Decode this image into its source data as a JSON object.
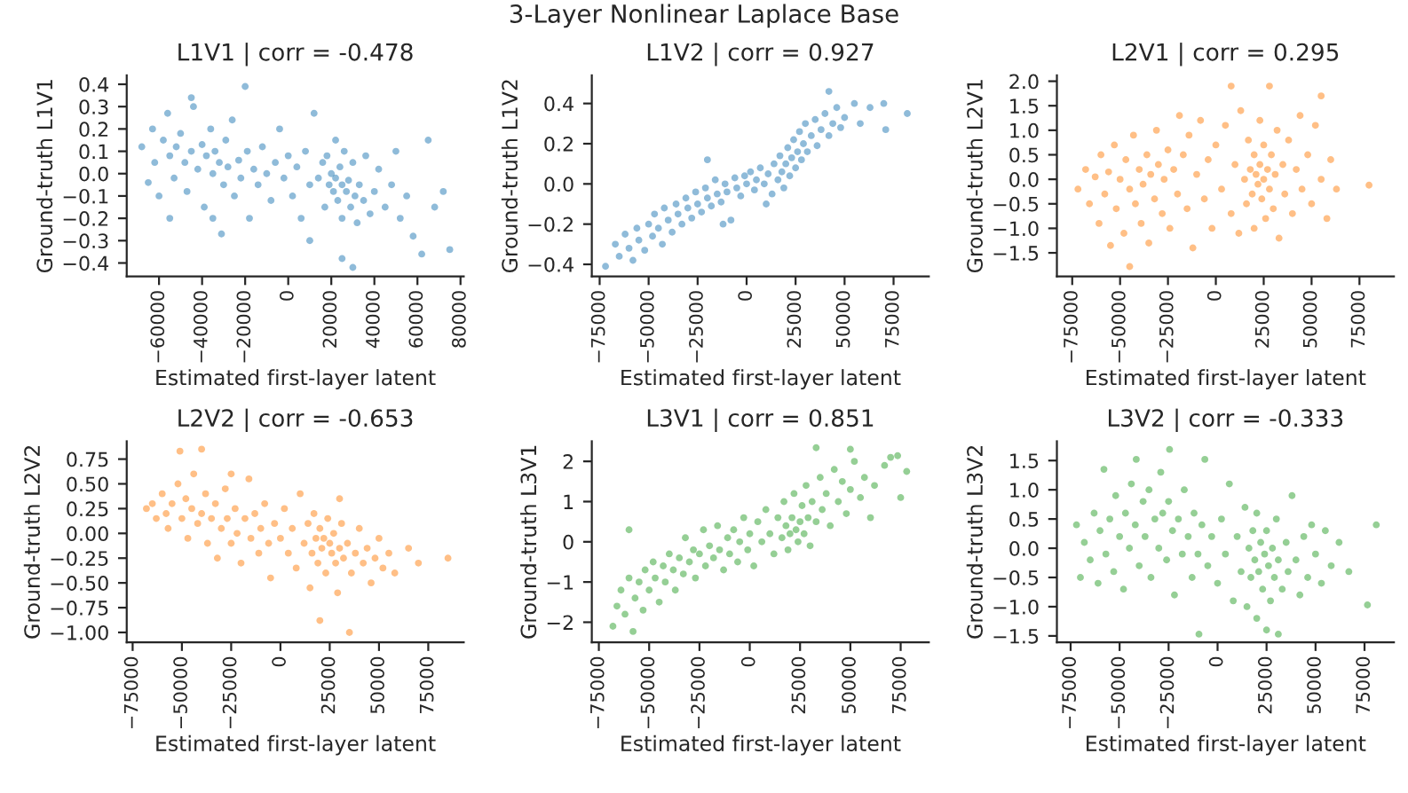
{
  "chart_data": [
    {
      "type": "other",
      "title": "3-Layer Nonlinear Laplace Base"
    },
    {
      "type": "scatter",
      "title": "L1V1 | corr = -0.478",
      "xlabel": "Estimated first-layer latent",
      "ylabel": "Ground-truth L1V1",
      "marker": "circle",
      "xlim": [
        -75000,
        81500
      ],
      "ylim": [
        -0.46,
        0.44
      ],
      "xticks": [
        {
          "value": -60000,
          "label": "−60000"
        },
        {
          "value": -40000,
          "label": "−40000"
        },
        {
          "value": -20000,
          "label": "−20000"
        },
        0,
        20000,
        40000,
        60000,
        80000
      ],
      "yticks": [
        {
          "value": -0.4,
          "label": "−0.4"
        },
        {
          "value": -0.3,
          "label": "−0.3"
        },
        {
          "value": -0.2,
          "label": "−0.2"
        },
        {
          "value": -0.1,
          "label": "−0.1"
        },
        {
          "value": 0,
          "label": "0.0"
        },
        {
          "value": 0.1,
          "label": "0.1"
        },
        {
          "value": 0.2,
          "label": "0.2"
        },
        {
          "value": 0.3,
          "label": "0.3"
        },
        {
          "value": 0.4,
          "label": "0.4"
        }
      ],
      "series": [
        {
          "color": "#1f77b4",
          "x": [
            -68000,
            -65000,
            -63000,
            -62000,
            -60000,
            -58000,
            -56000,
            -55000,
            -53000,
            -52000,
            -50000,
            -48000,
            -47000,
            -45000,
            -44000,
            -42000,
            -40000,
            -39000,
            -38000,
            -36000,
            -35000,
            -34000,
            -32000,
            -31000,
            -30000,
            -29000,
            -28000,
            -26000,
            -25000,
            -23000,
            -22000,
            -20000,
            -19000,
            -18000,
            -16000,
            -14000,
            -12000,
            -10000,
            -8000,
            -6000,
            -4000,
            -2000,
            0,
            2000,
            4000,
            6000,
            8000,
            10000,
            12000,
            14000,
            16000,
            17000,
            18000,
            19000,
            20000,
            21000,
            22000,
            22000,
            23000,
            24000,
            25000,
            25000,
            26000,
            27000,
            28000,
            29000,
            30000,
            31000,
            32000,
            33000,
            35000,
            36000,
            38000,
            40000,
            42000,
            45000,
            48000,
            50000,
            52000,
            55000,
            58000,
            62000,
            65000,
            68000,
            72000,
            75000,
            25000,
            10000,
            -35000,
            -55000,
            -45000,
            30000
          ],
          "values": [
            0.12,
            -0.04,
            0.2,
            0.05,
            -0.1,
            0.15,
            0.27,
            0.08,
            -0.02,
            0.12,
            0.18,
            0.05,
            -0.08,
            0.1,
            0.3,
            0.02,
            0.13,
            -0.15,
            0.08,
            0.2,
            0.0,
            0.1,
            0.05,
            -0.27,
            -0.05,
            0.15,
            0.03,
            0.24,
            -0.1,
            0.06,
            -0.02,
            0.39,
            0.1,
            -0.2,
            0.02,
            -0.05,
            0.12,
            0.0,
            -0.12,
            0.05,
            0.2,
            -0.02,
            0.08,
            -0.1,
            0.03,
            -0.2,
            0.1,
            -0.05,
            0.27,
            -0.02,
            0.05,
            -0.15,
            0.08,
            -0.05,
            0.0,
            -0.08,
            -0.02,
            0.15,
            -0.12,
            0.03,
            -0.05,
            -0.2,
            0.1,
            -0.08,
            -0.03,
            -0.15,
            0.05,
            -0.1,
            -0.22,
            -0.05,
            -0.12,
            0.08,
            -0.18,
            -0.08,
            0.02,
            -0.15,
            -0.05,
            0.1,
            -0.2,
            -0.1,
            -0.28,
            -0.36,
            0.15,
            -0.15,
            -0.08,
            -0.34,
            -0.38,
            -0.3,
            -0.2,
            -0.2,
            0.34,
            -0.42
          ]
        }
      ]
    },
    {
      "type": "scatter",
      "title": "L1V2 | corr = 0.927",
      "xlabel": "Estimated first-layer latent",
      "ylabel": "Ground-truth L1V2",
      "marker": "circle",
      "xlim": [
        -79000,
        93000
      ],
      "ylim": [
        -0.46,
        0.54
      ],
      "xticks": [
        {
          "value": -75000,
          "label": "−75000"
        },
        {
          "value": -50000,
          "label": "−50000"
        },
        {
          "value": -25000,
          "label": "−25000"
        },
        0,
        25000,
        50000,
        75000
      ],
      "yticks": [
        {
          "value": -0.4,
          "label": "−0.4"
        },
        {
          "value": -0.2,
          "label": "−0.2"
        },
        {
          "value": 0,
          "label": "0.0"
        },
        {
          "value": 0.2,
          "label": "0.2"
        },
        {
          "value": 0.4,
          "label": "0.4"
        }
      ],
      "series": [
        {
          "color": "#1f77b4",
          "x": [
            -72000,
            -67000,
            -65000,
            -62000,
            -60000,
            -58000,
            -56000,
            -55000,
            -52000,
            -50000,
            -48000,
            -47000,
            -45000,
            -43000,
            -42000,
            -40000,
            -38000,
            -36000,
            -35000,
            -33000,
            -31000,
            -30000,
            -28000,
            -26000,
            -25000,
            -23000,
            -21000,
            -20000,
            -18000,
            -16000,
            -15000,
            -13000,
            -11000,
            -10000,
            -8000,
            -6000,
            -5000,
            -3000,
            -1000,
            0,
            2000,
            4000,
            5000,
            7000,
            9000,
            11000,
            13000,
            14000,
            16000,
            17000,
            18000,
            19000,
            20000,
            21000,
            22000,
            23000,
            24000,
            25000,
            26000,
            27000,
            28000,
            29000,
            30000,
            31000,
            33000,
            35000,
            36000,
            38000,
            40000,
            42000,
            44000,
            46000,
            48000,
            50000,
            55000,
            42000,
            58000,
            63000,
            70000,
            71000,
            82000,
            -20000,
            -12000,
            10000
          ],
          "values": [
            -0.41,
            -0.3,
            -0.36,
            -0.25,
            -0.32,
            -0.38,
            -0.22,
            -0.28,
            -0.33,
            -0.2,
            -0.26,
            -0.15,
            -0.22,
            -0.3,
            -0.12,
            -0.18,
            -0.24,
            -0.1,
            -0.15,
            -0.2,
            -0.07,
            -0.12,
            -0.17,
            -0.04,
            -0.1,
            -0.14,
            -0.02,
            -0.07,
            -0.11,
            0.02,
            -0.05,
            -0.09,
            0.0,
            -0.04,
            -0.18,
            0.03,
            -0.02,
            -0.06,
            0.04,
            0.0,
            0.06,
            -0.03,
            0.02,
            0.08,
            0.0,
            0.05,
            -0.05,
            0.1,
            0.02,
            0.14,
            0.06,
            -0.02,
            0.1,
            0.18,
            0.04,
            0.13,
            0.22,
            0.08,
            0.16,
            0.26,
            0.12,
            0.2,
            0.3,
            0.16,
            0.24,
            0.32,
            0.19,
            0.27,
            0.35,
            0.24,
            0.3,
            0.38,
            0.28,
            0.33,
            0.4,
            0.46,
            0.3,
            0.38,
            0.4,
            0.27,
            0.35,
            0.12,
            -0.2,
            -0.1
          ]
        }
      ]
    },
    {
      "type": "scatter",
      "title": "L2V1 | corr = 0.295",
      "xlabel": "Estimated first-layer latent",
      "ylabel": "Ground-truth L2V1",
      "marker": "circle",
      "xlim": [
        -83000,
        93000
      ],
      "ylim": [
        -1.98,
        2.12
      ],
      "xticks": [
        {
          "value": -75000,
          "label": "−75000"
        },
        {
          "value": -50000,
          "label": "−50000"
        },
        {
          "value": -25000,
          "label": "−25000"
        },
        0,
        25000,
        50000,
        75000
      ],
      "yticks": [
        {
          "value": -1.5,
          "label": "−1.5"
        },
        {
          "value": -1.0,
          "label": "−1.0"
        },
        {
          "value": -0.5,
          "label": "−0.5"
        },
        {
          "value": 0,
          "label": "0.0"
        },
        {
          "value": 0.5,
          "label": "0.5"
        },
        {
          "value": 1.0,
          "label": "1.0"
        },
        {
          "value": 1.5,
          "label": "1.5"
        },
        {
          "value": 2.0,
          "label": "2.0"
        }
      ],
      "series": [
        {
          "color": "#ff7f0e",
          "x": [
            -72000,
            -68000,
            -66000,
            -63000,
            -61000,
            -60000,
            -58000,
            -56000,
            -55000,
            -53000,
            -52000,
            -50000,
            -48000,
            -47000,
            -45000,
            -45000,
            -43000,
            -42000,
            -40000,
            -39000,
            -38000,
            -36000,
            -35000,
            -34000,
            -32000,
            -31000,
            -30000,
            -28000,
            -27000,
            -25000,
            -24000,
            -22000,
            -20000,
            -19000,
            -17000,
            -15000,
            -14000,
            -12000,
            -10000,
            -8000,
            -6000,
            -4000,
            -2000,
            0,
            3000,
            5000,
            8000,
            8000,
            10000,
            12000,
            13000,
            15000,
            16000,
            17000,
            18000,
            19000,
            20000,
            20000,
            21000,
            22000,
            23000,
            23000,
            24000,
            25000,
            25000,
            26000,
            27000,
            28000,
            28000,
            29000,
            30000,
            31000,
            32000,
            33000,
            35000,
            36000,
            38000,
            40000,
            42000,
            44000,
            45000,
            48000,
            50000,
            52000,
            55000,
            55000,
            58000,
            60000,
            63000,
            80000
          ],
          "values": [
            -0.2,
            0.2,
            -0.5,
            0.05,
            -0.9,
            0.5,
            -0.3,
            0.15,
            -1.35,
            0.7,
            -0.6,
            0.0,
            -1.1,
            0.4,
            -0.2,
            -1.78,
            0.9,
            -0.5,
            0.2,
            -0.9,
            -0.1,
            0.5,
            -1.3,
            0.1,
            -0.4,
            1.0,
            0.3,
            -0.7,
            0.0,
            0.6,
            -1.0,
            0.2,
            -0.3,
            1.3,
            0.5,
            -0.6,
            0.9,
            -1.4,
            0.1,
            1.2,
            -0.4,
            0.4,
            -1.0,
            0.7,
            -0.2,
            1.1,
            1.9,
            -0.7,
            0.3,
            -1.1,
            1.4,
            0.0,
            -0.5,
            0.8,
            0.2,
            -0.3,
            0.5,
            -1.0,
            0.1,
            -0.1,
            0.3,
            1.2,
            -0.4,
            0.0,
            0.7,
            -0.8,
            0.2,
            -0.2,
            1.9,
            0.5,
            -0.6,
            0.1,
            1.0,
            -1.2,
            0.3,
            -0.3,
            0.8,
            -0.7,
            0.2,
            1.3,
            -0.2,
            0.5,
            -0.5,
            1.1,
            1.7,
            0.0,
            -0.8,
            0.4,
            -0.2,
            -0.12
          ]
        }
      ]
    },
    {
      "type": "scatter",
      "title": "L2V2 | corr = -0.653",
      "xlabel": "Estimated first-layer latent",
      "ylabel": "Ground-truth L2V2",
      "marker": "circle",
      "xlim": [
        -78000,
        93000
      ],
      "ylim": [
        -1.1,
        0.93
      ],
      "xticks": [
        {
          "value": -75000,
          "label": "−75000"
        },
        {
          "value": -50000,
          "label": "−50000"
        },
        {
          "value": -25000,
          "label": "−25000"
        },
        0,
        25000,
        50000,
        75000
      ],
      "yticks": [
        {
          "value": -1.0,
          "label": "−1.00"
        },
        {
          "value": -0.75,
          "label": "−0.75"
        },
        {
          "value": -0.5,
          "label": "−0.50"
        },
        {
          "value": -0.25,
          "label": "−0.25"
        },
        {
          "value": 0,
          "label": "0.00"
        },
        {
          "value": 0.25,
          "label": "0.25"
        },
        {
          "value": 0.5,
          "label": "0.50"
        },
        {
          "value": 0.75,
          "label": "0.75"
        }
      ],
      "series": [
        {
          "color": "#ff7f0e",
          "x": [
            -68000,
            -65000,
            -63000,
            -60000,
            -58000,
            -57000,
            -55000,
            -52000,
            -51000,
            -50000,
            -48000,
            -47000,
            -45000,
            -44000,
            -42000,
            -40000,
            -40000,
            -38000,
            -37000,
            -35000,
            -33000,
            -32000,
            -30000,
            -28000,
            -27000,
            -25000,
            -23000,
            -22000,
            -20000,
            -18000,
            -16000,
            -15000,
            -13000,
            -11000,
            -10000,
            -8000,
            -6000,
            -5000,
            -3000,
            0,
            2000,
            4000,
            6000,
            8000,
            10000,
            12000,
            14000,
            15000,
            16000,
            17000,
            18000,
            19000,
            20000,
            20000,
            21000,
            22000,
            23000,
            24000,
            25000,
            26000,
            27000,
            28000,
            29000,
            30000,
            31000,
            32000,
            34000,
            35000,
            36000,
            38000,
            40000,
            42000,
            44000,
            46000,
            48000,
            50000,
            52000,
            55000,
            58000,
            65000,
            70000,
            85000,
            30000,
            -25000
          ],
          "values": [
            0.25,
            0.3,
            0.15,
            0.4,
            0.2,
            0.05,
            0.3,
            0.5,
            0.83,
            0.15,
            0.35,
            -0.05,
            0.25,
            0.6,
            0.1,
            0.85,
            0.2,
            0.4,
            -0.1,
            0.15,
            0.3,
            -0.25,
            0.05,
            0.45,
            0.15,
            -0.1,
            0.25,
            0.0,
            -0.3,
            0.15,
            0.55,
            -0.05,
            0.2,
            -0.2,
            0.05,
            0.3,
            -0.1,
            -0.45,
            0.1,
            -0.05,
            0.25,
            -0.2,
            0.05,
            -0.35,
            0.4,
            -0.1,
            0.1,
            -0.55,
            -0.2,
            0.2,
            -0.05,
            -0.3,
            -0.88,
            0.05,
            -0.15,
            -0.05,
            -0.4,
            0.15,
            -0.1,
            -0.2,
            0.0,
            -0.3,
            -0.6,
            -0.15,
            0.1,
            -0.25,
            -0.1,
            -1.0,
            -0.4,
            -0.2,
            0.05,
            -0.3,
            -0.15,
            -0.5,
            -0.25,
            -0.05,
            -0.35,
            -0.2,
            -0.4,
            -0.15,
            -0.3,
            -0.25,
            0.35,
            0.6
          ]
        }
      ]
    },
    {
      "type": "scatter",
      "title": "L3V1 | corr = 0.851",
      "xlabel": "Estimated first-layer latent",
      "ylabel": "Ground-truth L3V1",
      "marker": "circle",
      "xlim": [
        -78500,
        89000
      ],
      "ylim": [
        -2.5,
        2.5
      ],
      "xticks": [
        {
          "value": -75000,
          "label": "−75000"
        },
        {
          "value": -50000,
          "label": "−50000"
        },
        {
          "value": -25000,
          "label": "−25000"
        },
        0,
        25000,
        50000,
        75000
      ],
      "yticks": [
        {
          "value": -2,
          "label": "−2"
        },
        {
          "value": -1,
          "label": "−1"
        },
        0,
        1,
        2
      ],
      "series": [
        {
          "color": "#2ca02c",
          "x": [
            -68000,
            -66000,
            -64000,
            -62000,
            -60000,
            -58000,
            -57000,
            -55000,
            -53000,
            -52000,
            -50000,
            -48000,
            -47000,
            -45000,
            -43000,
            -42000,
            -40000,
            -38000,
            -37000,
            -35000,
            -33000,
            -32000,
            -30000,
            -28000,
            -27000,
            -25000,
            -23000,
            -22000,
            -20000,
            -18000,
            -16000,
            -15000,
            -13000,
            -11000,
            -10000,
            -8000,
            -6000,
            -5000,
            -3000,
            -1000,
            0,
            2000,
            4000,
            6000,
            8000,
            10000,
            12000,
            14000,
            16000,
            17000,
            18000,
            19000,
            20000,
            21000,
            22000,
            23000,
            24000,
            25000,
            26000,
            27000,
            28000,
            29000,
            30000,
            31000,
            33000,
            35000,
            36000,
            38000,
            40000,
            42000,
            44000,
            46000,
            48000,
            50000,
            52000,
            55000,
            57000,
            60000,
            62000,
            67000,
            70000,
            78000,
            75000,
            33000,
            50000,
            73500,
            -60000
          ],
          "values": [
            -2.1,
            -1.6,
            -1.2,
            -1.8,
            -0.9,
            -2.23,
            -1.4,
            -1.0,
            -1.7,
            -0.7,
            -1.2,
            -0.5,
            -0.9,
            -1.5,
            -0.6,
            -1.0,
            -0.3,
            -0.7,
            -1.2,
            -0.4,
            -0.8,
            0.1,
            -0.5,
            -0.2,
            -0.9,
            -0.3,
            0.3,
            -0.6,
            -0.1,
            -0.4,
            0.4,
            -0.2,
            -0.7,
            0.1,
            -0.3,
            0.3,
            -0.5,
            0.0,
            0.6,
            -0.2,
            0.2,
            -0.6,
            0.5,
            0.0,
            0.8,
            0.2,
            -0.3,
            0.6,
            0.1,
            1.0,
            0.4,
            -0.2,
            0.2,
            0.6,
            1.2,
            0.3,
            0.0,
            0.5,
            0.9,
            0.2,
            1.4,
            0.6,
            -0.1,
            1.0,
            0.5,
            1.6,
            0.8,
            1.2,
            0.4,
            1.8,
            1.0,
            1.5,
            0.7,
            1.3,
            2.0,
            1.1,
            1.6,
            0.6,
            1.4,
            1.9,
            2.1,
            1.75,
            1.1,
            2.34,
            2.3,
            2.14,
            0.3
          ]
        }
      ]
    },
    {
      "type": "scatter",
      "title": "L3V2 | corr = -0.333",
      "xlabel": "Estimated first-layer latent",
      "ylabel": "Ground-truth L3V2",
      "marker": "circle",
      "xlim": [
        -82000,
        90000
      ],
      "ylim": [
        -1.61,
        1.83
      ],
      "xticks": [
        {
          "value": -75000,
          "label": "−75000"
        },
        {
          "value": -50000,
          "label": "−50000"
        },
        {
          "value": -25000,
          "label": "−25000"
        },
        0,
        25000,
        50000,
        75000
      ],
      "yticks": [
        {
          "value": -1.5,
          "label": "−1.5"
        },
        {
          "value": -1.0,
          "label": "−1.0"
        },
        {
          "value": -0.5,
          "label": "−0.5"
        },
        {
          "value": 0,
          "label": "0.0"
        },
        {
          "value": 0.5,
          "label": "0.5"
        },
        {
          "value": 1.0,
          "label": "1.0"
        },
        {
          "value": 1.5,
          "label": "1.5"
        }
      ],
      "series": [
        {
          "color": "#2ca02c",
          "x": [
            -72000,
            -70000,
            -68000,
            -65000,
            -63000,
            -61000,
            -60000,
            -58000,
            -57000,
            -55000,
            -53000,
            -52000,
            -50000,
            -48000,
            -47000,
            -45000,
            -44000,
            -42000,
            -41500,
            -40000,
            -38000,
            -37000,
            -35000,
            -34000,
            -32000,
            -30000,
            -29000,
            -28000,
            -26000,
            -24500,
            -25000,
            -23000,
            -22000,
            -20000,
            -18000,
            -17000,
            -15000,
            -13000,
            -12000,
            -10000,
            -9500,
            -8000,
            -6500,
            -5000,
            -3000,
            0,
            2000,
            4000,
            6000,
            8000,
            10000,
            12000,
            14000,
            15000,
            16000,
            17000,
            18000,
            19000,
            20000,
            20000,
            21000,
            22000,
            23000,
            24000,
            25000,
            25000,
            26000,
            27000,
            28000,
            29000,
            30000,
            31000,
            31000,
            33000,
            35000,
            36000,
            38000,
            40000,
            42000,
            44000,
            46000,
            48000,
            50000,
            53000,
            55000,
            58000,
            62000,
            67000,
            76500,
            81000
          ],
          "values": [
            0.4,
            -0.5,
            0.1,
            -0.2,
            0.6,
            -0.6,
            0.3,
            1.35,
            -0.1,
            0.5,
            -0.4,
            0.9,
            0.2,
            -0.7,
            0.6,
            0.0,
            1.1,
            0.4,
            1.52,
            -0.3,
            0.8,
            0.2,
            1.0,
            -0.5,
            0.5,
            0.0,
            1.3,
            0.6,
            -0.2,
            1.69,
            0.8,
            0.3,
            -0.8,
            0.5,
            -0.1,
            1.0,
            0.2,
            -0.5,
            0.6,
            -0.1,
            -1.47,
            0.4,
            1.52,
            -0.3,
            0.2,
            -0.6,
            0.5,
            -0.1,
            1.1,
            -0.9,
            0.2,
            -0.4,
            0.7,
            -1.0,
            0.0,
            -0.5,
            0.3,
            -0.2,
            -1.2,
            0.6,
            -0.4,
            0.1,
            -0.7,
            -0.1,
            0.3,
            -1.4,
            -0.3,
            -0.9,
            0.0,
            -0.5,
            0.5,
            -0.2,
            -1.47,
            -0.7,
            0.1,
            -0.4,
            0.9,
            -0.2,
            -0.8,
            0.2,
            -0.5,
            0.4,
            -0.1,
            -0.6,
            0.3,
            -0.3,
            0.1,
            -0.4,
            -0.97,
            0.4
          ]
        }
      ]
    }
  ]
}
